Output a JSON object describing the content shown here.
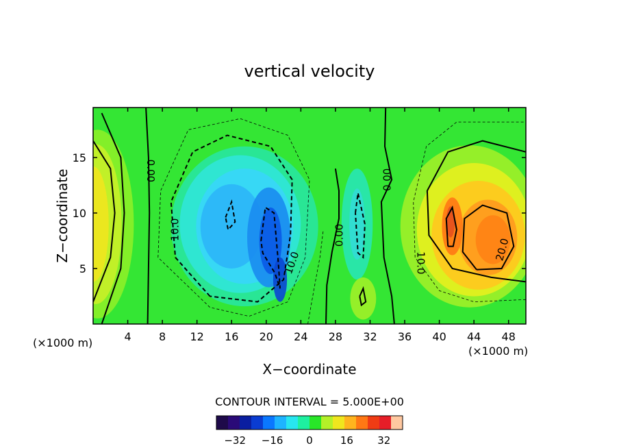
{
  "chart_data": {
    "type": "heatmap",
    "title": "vertical velocity",
    "xlabel": "X−coordinate",
    "ylabel": "Z−coordinate",
    "x_unit_left": "(×1000 m)",
    "x_unit_right": "(×1000 m)",
    "xlim": [
      0,
      50
    ],
    "ylim": [
      0,
      19.5
    ],
    "x_ticks": [
      4,
      8,
      12,
      16,
      20,
      24,
      28,
      32,
      36,
      40,
      44,
      48
    ],
    "x_tick_labels": [
      "4",
      "8",
      "12",
      "16",
      "20",
      "24",
      "28",
      "32",
      "36",
      "40",
      "44",
      "48"
    ],
    "y_ticks": [
      5,
      10,
      15
    ],
    "y_tick_labels": [
      "5",
      "10",
      "15"
    ],
    "contour_interval_text": "CONTOUR INTERVAL = 5.000E+00",
    "contour_labels": [
      {
        "text": "0.00",
        "x": 6.6,
        "y": 13.8,
        "angle": 90
      },
      {
        "text": "10.0",
        "x": 9.5,
        "y": 8.5,
        "angle": -90
      },
      {
        "text": "10.0",
        "x": 23.0,
        "y": 5.5,
        "angle": -70
      },
      {
        "text": "0.00",
        "x": 28.5,
        "y": 8.0,
        "angle": -90
      },
      {
        "text": "0.00",
        "x": 34.0,
        "y": 13.0,
        "angle": -90
      },
      {
        "text": "10.0",
        "x": 37.8,
        "y": 5.5,
        "angle": 90
      },
      {
        "text": "20.0",
        "x": 47.3,
        "y": 6.7,
        "angle": -75
      }
    ],
    "colorbar": {
      "vmin": -40,
      "vmax": 40,
      "ticks": [
        -32,
        -16,
        0,
        16,
        32
      ],
      "tick_labels": [
        "−32",
        "−16",
        "0",
        "16",
        "32"
      ],
      "colors": [
        "#1e0a4a",
        "#2a0a78",
        "#0a1ea0",
        "#0a3cd2",
        "#0a78ff",
        "#1eb4ff",
        "#28e6f0",
        "#1ef0a0",
        "#28e628",
        "#b4f028",
        "#f0e61e",
        "#ffb41e",
        "#ff7814",
        "#f03c14",
        "#e61e28",
        "#ffc8a0"
      ]
    },
    "field_features": [
      {
        "sign": "positive",
        "x": 0.8,
        "z": 9.0,
        "peak": 20
      },
      {
        "sign": "negative",
        "x": 15.8,
        "z": 10.0,
        "peak": -15
      },
      {
        "sign": "negative",
        "x": 20.5,
        "z": 8.0,
        "peak": -22
      },
      {
        "sign": "negative",
        "x": 21.5,
        "z": 4.0,
        "peak": -20
      },
      {
        "sign": "negative",
        "x": 30.5,
        "z": 9.0,
        "peak": -8
      },
      {
        "sign": "positive",
        "x": 31.2,
        "z": 2.3,
        "peak": 7
      },
      {
        "sign": "positive",
        "x": 41.5,
        "z": 8.5,
        "peak": 28
      },
      {
        "sign": "positive",
        "x": 46.0,
        "z": 7.5,
        "peak": 26
      }
    ]
  }
}
